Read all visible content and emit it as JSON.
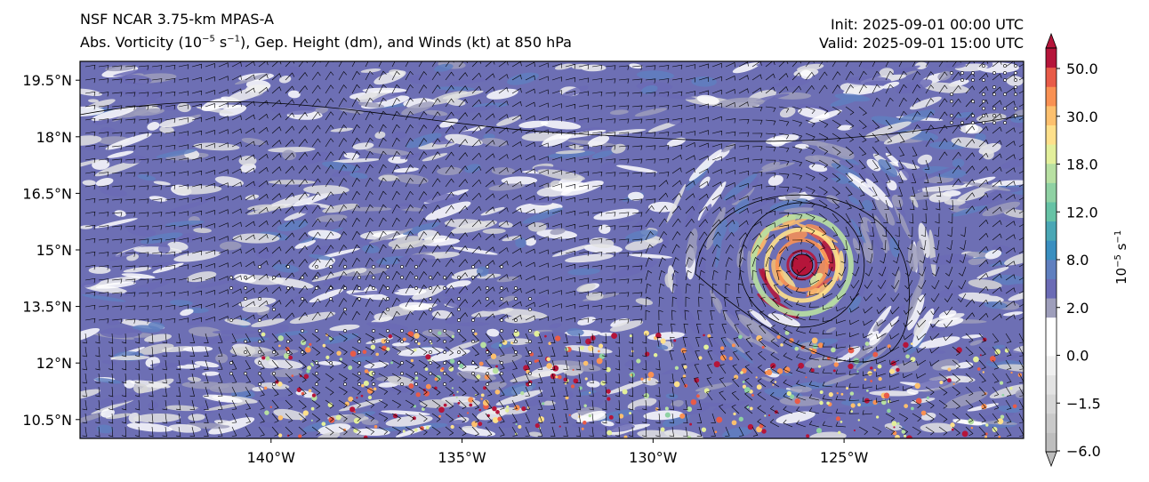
{
  "header": {
    "model": "NSF NCAR 3.75-km MPAS-A",
    "field_prefix": "Abs. Vorticity (10",
    "field_exp1": "−5",
    "field_mid": " s",
    "field_exp2": "−1",
    "field_suffix": "), Gep. Height (dm), and Winds (kt) at 850 hPa",
    "init": "Init: 2025-09-01 00:00 UTC",
    "valid": "Valid: 2025-09-01 15:00 UTC"
  },
  "map": {
    "lat_labels": [
      "19.5°N",
      "18°N",
      "16.5°N",
      "15°N",
      "13.5°N",
      "12°N",
      "10.5°N"
    ],
    "lon_labels": [
      "140°W",
      "135°W",
      "130°W",
      "125°W"
    ],
    "lat_range": [
      10.0,
      20.0
    ],
    "lon_range": [
      -145.0,
      -120.3
    ]
  },
  "colorbar": {
    "tick_labels": [
      "50.0",
      "30.0",
      "18.0",
      "12.0",
      "8.0",
      "2.0",
      "0.0",
      "−1.5",
      "−6.0"
    ],
    "label_base": "10",
    "label_exp1": "−5",
    "label_mid": " s",
    "label_exp2": "−1",
    "colors": [
      "#bdbdbd",
      "#c9c9c9",
      "#d6d6d6",
      "#e3e3e3",
      "#f0f0f0",
      "#ffffff",
      "#ffffff",
      "#9e9ebb",
      "#6b6bb5",
      "#5f7fbf",
      "#3a8fc0",
      "#4aa7b5",
      "#66c2a5",
      "#8fd1a3",
      "#b8e0a2",
      "#e3ef9b",
      "#fee08b",
      "#fdc06e",
      "#f99153",
      "#e85b48",
      "#b5153a"
    ],
    "under_color": "#bdbdbd",
    "over_color": "#b5153a"
  },
  "cyclone": {
    "center_lat": 14.6,
    "center_lon": -126.1
  }
}
